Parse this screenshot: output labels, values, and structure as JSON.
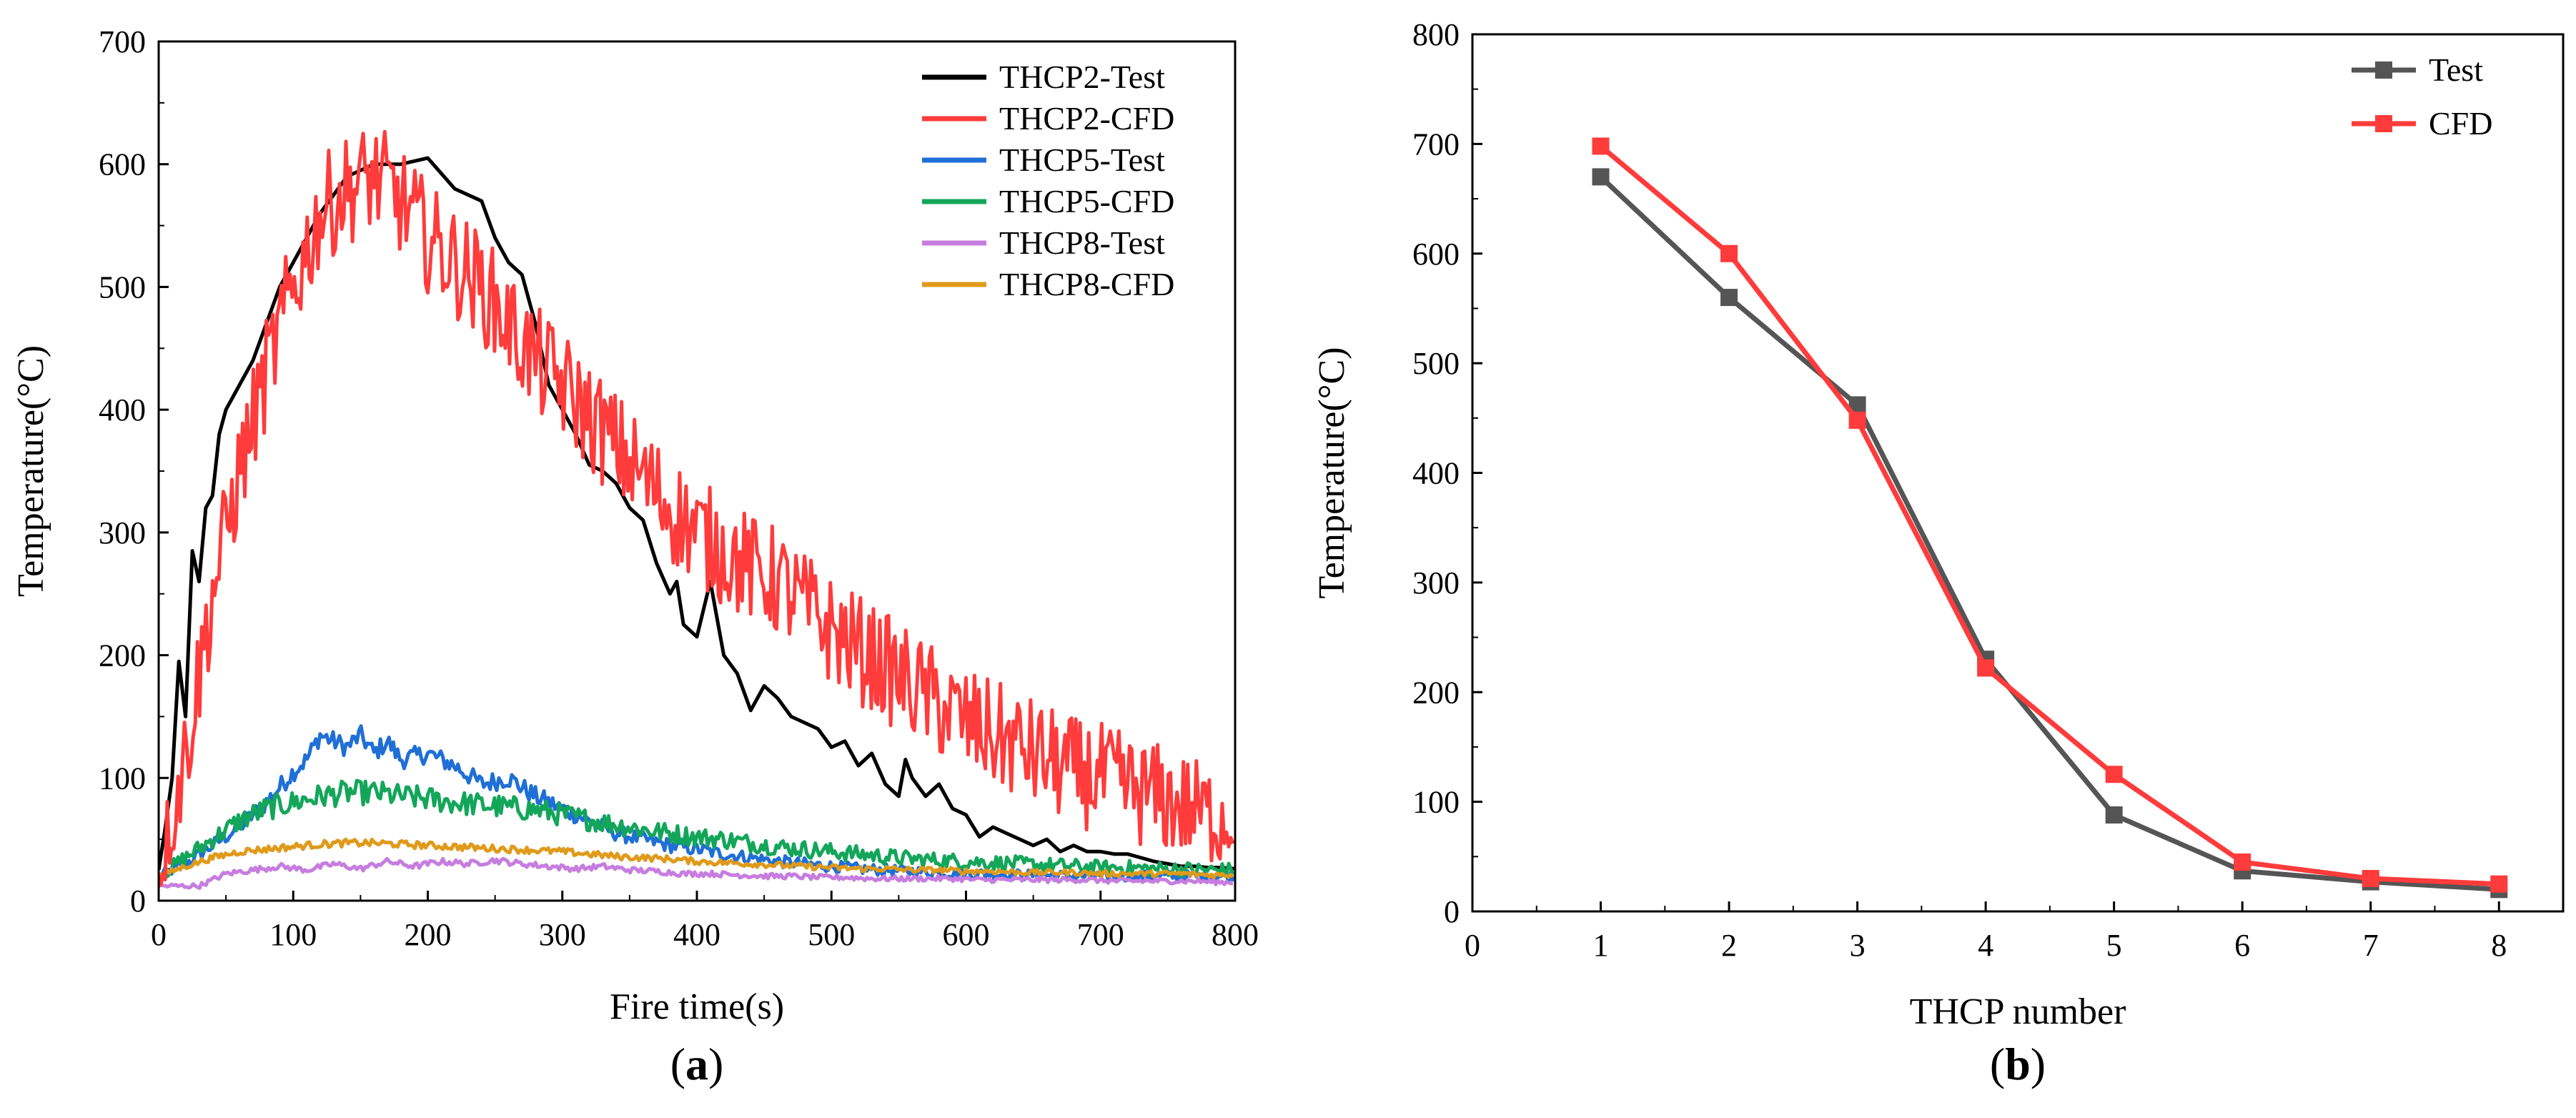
{
  "chart_data": [
    {
      "type": "line",
      "panel_label": "a",
      "xlabel": "Fire time(s)",
      "ylabel": "Temperature(°C)",
      "xlim": [
        0,
        800
      ],
      "ylim": [
        0,
        700
      ],
      "xticks": [
        0,
        100,
        200,
        300,
        400,
        500,
        600,
        700,
        800
      ],
      "yticks": [
        0,
        100,
        200,
        300,
        400,
        500,
        600,
        700
      ],
      "grid": false,
      "legend_position": "top-right",
      "series": [
        {
          "name": "THCP2-Test",
          "color": "#000000",
          "x": [
            0,
            5,
            10,
            15,
            20,
            25,
            30,
            35,
            40,
            45,
            50,
            60,
            70,
            80,
            90,
            100,
            120,
            140,
            160,
            180,
            200,
            220,
            240,
            250,
            260,
            270,
            280,
            290,
            300,
            310,
            320,
            330,
            340,
            350,
            360,
            370,
            380,
            385,
            390,
            400,
            410,
            420,
            430,
            440,
            450,
            460,
            470,
            480,
            490,
            500,
            510,
            520,
            530,
            540,
            550,
            555,
            560,
            570,
            580,
            590,
            600,
            610,
            620,
            630,
            640,
            650,
            660,
            670,
            680,
            690,
            700,
            710,
            720,
            730,
            740,
            750,
            760,
            770,
            780,
            790,
            800
          ],
          "y": [
            25,
            60,
            100,
            195,
            150,
            285,
            260,
            320,
            330,
            380,
            400,
            420,
            440,
            470,
            500,
            520,
            560,
            590,
            600,
            600,
            605,
            580,
            570,
            540,
            520,
            510,
            470,
            420,
            400,
            380,
            355,
            350,
            340,
            320,
            310,
            275,
            250,
            260,
            225,
            215,
            260,
            200,
            185,
            155,
            175,
            165,
            150,
            145,
            140,
            125,
            130,
            110,
            120,
            95,
            85,
            115,
            100,
            85,
            95,
            75,
            70,
            52,
            60,
            55,
            50,
            45,
            50,
            40,
            45,
            40,
            40,
            38,
            38,
            35,
            32,
            30,
            28,
            28,
            27,
            27,
            26
          ]
        },
        {
          "name": "THCP2-CFD",
          "color": "#ff3b3b",
          "x": [
            0,
            20,
            40,
            60,
            80,
            100,
            120,
            140,
            160,
            180,
            200,
            220,
            240,
            260,
            280,
            300,
            320,
            340,
            360,
            380,
            400,
            420,
            440,
            460,
            480,
            500,
            520,
            540,
            560,
            580,
            600,
            620,
            640,
            660,
            680,
            700,
            720,
            740,
            760,
            780,
            800
          ],
          "y": [
            20,
            120,
            250,
            350,
            430,
            500,
            560,
            580,
            590,
            570,
            540,
            520,
            500,
            470,
            440,
            420,
            395,
            370,
            345,
            320,
            300,
            285,
            270,
            260,
            240,
            220,
            205,
            190,
            175,
            160,
            145,
            135,
            125,
            115,
            105,
            100,
            92,
            85,
            78,
            70,
            65
          ],
          "noise": 45
        },
        {
          "name": "THCP5-Test",
          "color": "#1f6fd6",
          "x": [
            0,
            20,
            40,
            60,
            80,
            100,
            110,
            120,
            140,
            150,
            160,
            170,
            180,
            200,
            220,
            240,
            260,
            280,
            300,
            320,
            340,
            360,
            380,
            400,
            420,
            440,
            460,
            480,
            500,
            520,
            540,
            560,
            580,
            600,
            620,
            640,
            660,
            680,
            700,
            720,
            740,
            760,
            780,
            800
          ],
          "y": [
            20,
            30,
            45,
            60,
            80,
            105,
            115,
            135,
            125,
            135,
            120,
            130,
            115,
            120,
            110,
            95,
            100,
            85,
            75,
            65,
            55,
            50,
            45,
            42,
            38,
            35,
            32,
            30,
            28,
            26,
            25,
            24,
            23,
            22,
            22,
            21,
            21,
            20,
            20,
            20,
            20,
            20,
            20,
            20
          ],
          "noise": 8
        },
        {
          "name": "THCP5-CFD",
          "color": "#13a65a",
          "x": [
            0,
            20,
            40,
            60,
            80,
            100,
            120,
            140,
            160,
            180,
            200,
            220,
            240,
            260,
            280,
            300,
            320,
            340,
            360,
            380,
            400,
            420,
            440,
            460,
            480,
            500,
            520,
            540,
            560,
            580,
            600,
            620,
            640,
            660,
            680,
            700,
            720,
            740,
            760,
            780,
            800
          ],
          "y": [
            20,
            35,
            50,
            65,
            75,
            80,
            85,
            88,
            88,
            85,
            83,
            80,
            78,
            76,
            74,
            70,
            66,
            62,
            58,
            55,
            52,
            50,
            47,
            44,
            42,
            40,
            38,
            36,
            34,
            33,
            32,
            31,
            30,
            29,
            28,
            27,
            27,
            26,
            26,
            25,
            25
          ],
          "noise": 10
        },
        {
          "name": "THCP8-Test",
          "color": "#c77ddf",
          "x": [
            0,
            10,
            30,
            50,
            70,
            90,
            110,
            130,
            150,
            170,
            190,
            210,
            230,
            250,
            270,
            290,
            310,
            330,
            350,
            370,
            390,
            410,
            430,
            450,
            470,
            490,
            510,
            530,
            550,
            570,
            590,
            610,
            630,
            650,
            670,
            690,
            710,
            730,
            750,
            770,
            790,
            800
          ],
          "y": [
            12,
            12,
            12,
            22,
            25,
            28,
            25,
            30,
            26,
            32,
            28,
            32,
            30,
            33,
            30,
            28,
            26,
            28,
            25,
            24,
            22,
            22,
            21,
            20,
            20,
            19,
            19,
            18,
            18,
            18,
            18,
            17,
            17,
            17,
            17,
            17,
            16,
            16,
            16,
            16,
            15,
            15
          ],
          "noise": 4
        },
        {
          "name": "THCP8-CFD",
          "color": "#e09a1a",
          "x": [
            0,
            20,
            40,
            60,
            80,
            100,
            120,
            140,
            160,
            180,
            200,
            220,
            240,
            260,
            280,
            300,
            320,
            340,
            360,
            380,
            400,
            420,
            440,
            460,
            480,
            500,
            520,
            540,
            560,
            580,
            600,
            620,
            640,
            660,
            680,
            700,
            720,
            740,
            760,
            780,
            800
          ],
          "y": [
            20,
            28,
            35,
            40,
            42,
            44,
            46,
            47,
            47,
            46,
            45,
            44,
            43,
            42,
            41,
            40,
            38,
            36,
            35,
            34,
            32,
            31,
            30,
            29,
            28,
            27,
            26,
            26,
            25,
            25,
            24,
            24,
            23,
            23,
            23,
            22,
            22,
            22,
            22,
            21,
            21
          ],
          "noise": 4
        }
      ]
    },
    {
      "type": "line",
      "panel_label": "b",
      "xlabel": "THCP number",
      "ylabel": "Temperature(°C)",
      "xlim": [
        0,
        8.5
      ],
      "ylim": [
        0,
        800
      ],
      "xticks": [
        0,
        1,
        2,
        3,
        4,
        5,
        6,
        7,
        8
      ],
      "yticks": [
        0,
        100,
        200,
        300,
        400,
        500,
        600,
        700,
        800
      ],
      "grid": false,
      "legend_position": "top-right",
      "series": [
        {
          "name": "Test",
          "color": "#555555",
          "marker": "square",
          "x": [
            1,
            2,
            3,
            4,
            5,
            6,
            7,
            8
          ],
          "y": [
            670,
            560,
            462,
            230,
            88,
            37,
            27,
            20
          ]
        },
        {
          "name": "CFD",
          "color": "#ff3b3b",
          "marker": "square",
          "x": [
            1,
            2,
            3,
            4,
            5,
            6,
            7,
            8
          ],
          "y": [
            698,
            600,
            448,
            222,
            125,
            45,
            30,
            25
          ]
        }
      ]
    }
  ]
}
